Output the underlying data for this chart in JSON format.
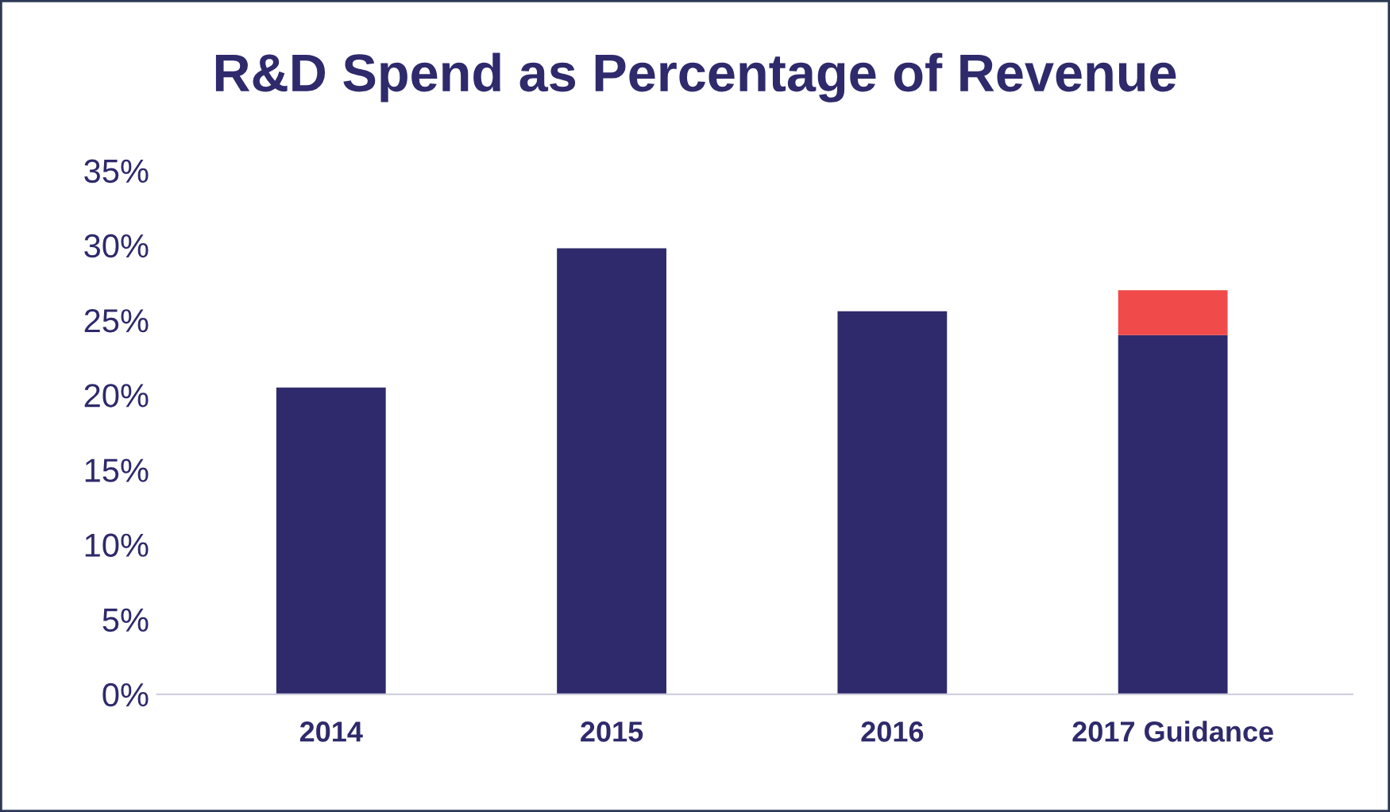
{
  "chart_data": {
    "type": "bar",
    "title": "R&D Spend as Percentage of Revenue",
    "categories": [
      "2014",
      "2015",
      "2016",
      "2017 Guidance"
    ],
    "stacked": true,
    "series": [
      {
        "color": "#2e2a6b",
        "values": [
          20.5,
          29.8,
          25.6,
          24
        ]
      },
      {
        "color": "#f04a4a",
        "values": [
          null,
          null,
          null,
          3
        ]
      }
    ],
    "ylim": [
      0,
      35
    ],
    "yticks": [
      {
        "value": 0,
        "label": "0%"
      },
      {
        "value": 5,
        "label": "5%"
      },
      {
        "value": 10,
        "label": "10%"
      },
      {
        "value": 15,
        "label": "15%"
      },
      {
        "value": 20,
        "label": "20%"
      },
      {
        "value": 25,
        "label": "25%"
      },
      {
        "value": 30,
        "label": "30%"
      },
      {
        "value": 35,
        "label": "35%"
      }
    ],
    "grid": false,
    "legend": false
  }
}
